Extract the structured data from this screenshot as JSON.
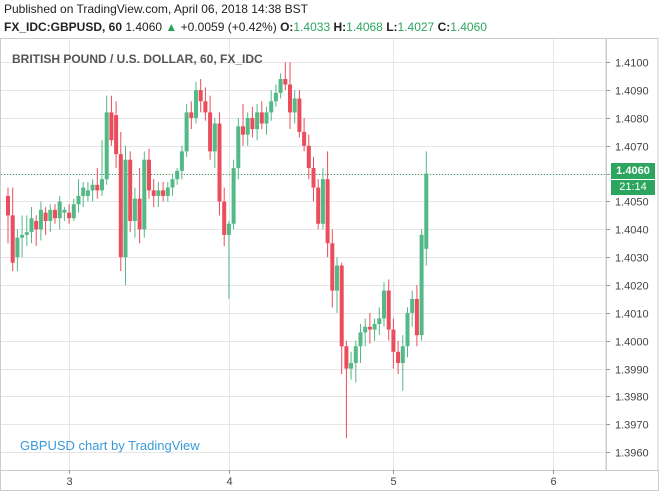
{
  "header": {
    "published": "Published on TradingView.com, April 06, 2018 14:38 BST",
    "symbol": "FX_IDC:GBPUSD, 60",
    "last": "1.4060",
    "change": "+0.0059 (+0.42%)",
    "open_label": "O:",
    "open": "1.4033",
    "high_label": "H:",
    "high": "1.4068",
    "low_label": "L:",
    "low": "1.4027",
    "close_label": "C:",
    "close": "1.4060"
  },
  "watermark": "GBPUSD chart by TradingView",
  "price_tag": "1.4060",
  "time_tag": "21:14",
  "colors": {
    "up": "#53b987",
    "down": "#eb4d5c",
    "grid": "#e6e6e6",
    "last_line": "#2ca55f",
    "watermark": "#3a9ad9"
  },
  "chart_data": {
    "type": "candlestick",
    "title": "BRITISH POUND / U.S. DOLLAR, 60, FX_IDC",
    "ylim": [
      1.3955,
      1.4108
    ],
    "y_ticks": [
      "1.3960",
      "1.3970",
      "1.3980",
      "1.3990",
      "1.4000",
      "1.4010",
      "1.4020",
      "1.4030",
      "1.4040",
      "1.4050",
      "1.4060",
      "1.4070",
      "1.4080",
      "1.4090",
      "1.4100"
    ],
    "x_ticks": [
      {
        "label": "3",
        "index": 13
      },
      {
        "label": "4",
        "index": 47
      },
      {
        "label": "5",
        "index": 82
      },
      {
        "label": "6",
        "index": 116
      }
    ],
    "last_price": 1.406,
    "candles": [
      {
        "o": 1.4052,
        "h": 1.4055,
        "l": 1.4035,
        "c": 1.4045
      },
      {
        "o": 1.4045,
        "h": 1.4055,
        "l": 1.4025,
        "c": 1.4028
      },
      {
        "o": 1.403,
        "h": 1.404,
        "l": 1.4025,
        "c": 1.4037
      },
      {
        "o": 1.4037,
        "h": 1.4045,
        "l": 1.403,
        "c": 1.4038
      },
      {
        "o": 1.4038,
        "h": 1.4045,
        "l": 1.4034,
        "c": 1.4039
      },
      {
        "o": 1.4039,
        "h": 1.4048,
        "l": 1.4035,
        "c": 1.4044
      },
      {
        "o": 1.4043,
        "h": 1.4045,
        "l": 1.4034,
        "c": 1.404
      },
      {
        "o": 1.404,
        "h": 1.405,
        "l": 1.4036,
        "c": 1.4047
      },
      {
        "o": 1.4046,
        "h": 1.4048,
        "l": 1.4038,
        "c": 1.4043
      },
      {
        "o": 1.4043,
        "h": 1.4049,
        "l": 1.4039,
        "c": 1.4047
      },
      {
        "o": 1.4047,
        "h": 1.4049,
        "l": 1.4042,
        "c": 1.4044
      },
      {
        "o": 1.4044,
        "h": 1.4052,
        "l": 1.404,
        "c": 1.405
      },
      {
        "o": 1.4046,
        "h": 1.4048,
        "l": 1.4043,
        "c": 1.4047
      },
      {
        "o": 1.4046,
        "h": 1.4049,
        "l": 1.4042,
        "c": 1.4044
      },
      {
        "o": 1.4044,
        "h": 1.4051,
        "l": 1.4043,
        "c": 1.4049
      },
      {
        "o": 1.4049,
        "h": 1.4058,
        "l": 1.4046,
        "c": 1.4052
      },
      {
        "o": 1.4052,
        "h": 1.4057,
        "l": 1.4048,
        "c": 1.4055
      },
      {
        "o": 1.4052,
        "h": 1.4057,
        "l": 1.405,
        "c": 1.4054
      },
      {
        "o": 1.4054,
        "h": 1.4058,
        "l": 1.405,
        "c": 1.4056
      },
      {
        "o": 1.4056,
        "h": 1.4062,
        "l": 1.4051,
        "c": 1.4054
      },
      {
        "o": 1.4054,
        "h": 1.4072,
        "l": 1.4052,
        "c": 1.4058
      },
      {
        "o": 1.4058,
        "h": 1.4088,
        "l": 1.4056,
        "c": 1.4082
      },
      {
        "o": 1.4082,
        "h": 1.4088,
        "l": 1.407,
        "c": 1.4072
      },
      {
        "o": 1.4081,
        "h": 1.4086,
        "l": 1.4062,
        "c": 1.4067
      },
      {
        "o": 1.4067,
        "h": 1.4075,
        "l": 1.4025,
        "c": 1.403
      },
      {
        "o": 1.403,
        "h": 1.407,
        "l": 1.402,
        "c": 1.4065
      },
      {
        "o": 1.4065,
        "h": 1.4068,
        "l": 1.4039,
        "c": 1.4043
      },
      {
        "o": 1.4043,
        "h": 1.4055,
        "l": 1.4037,
        "c": 1.4051
      },
      {
        "o": 1.4051,
        "h": 1.4062,
        "l": 1.4035,
        "c": 1.404
      },
      {
        "o": 1.404,
        "h": 1.4068,
        "l": 1.4037,
        "c": 1.4065
      },
      {
        "o": 1.4065,
        "h": 1.4069,
        "l": 1.4051,
        "c": 1.4054
      },
      {
        "o": 1.4054,
        "h": 1.4058,
        "l": 1.4048,
        "c": 1.4052
      },
      {
        "o": 1.4052,
        "h": 1.4057,
        "l": 1.4048,
        "c": 1.4054
      },
      {
        "o": 1.4054,
        "h": 1.4057,
        "l": 1.405,
        "c": 1.4052
      },
      {
        "o": 1.4052,
        "h": 1.4057,
        "l": 1.405,
        "c": 1.4055
      },
      {
        "o": 1.4055,
        "h": 1.406,
        "l": 1.4052,
        "c": 1.4058
      },
      {
        "o": 1.4058,
        "h": 1.4062,
        "l": 1.4056,
        "c": 1.4061
      },
      {
        "o": 1.4061,
        "h": 1.407,
        "l": 1.4058,
        "c": 1.4068
      },
      {
        "o": 1.4068,
        "h": 1.4085,
        "l": 1.4066,
        "c": 1.4082
      },
      {
        "o": 1.4082,
        "h": 1.4086,
        "l": 1.4076,
        "c": 1.408
      },
      {
        "o": 1.408,
        "h": 1.4093,
        "l": 1.4078,
        "c": 1.409
      },
      {
        "o": 1.409,
        "h": 1.4094,
        "l": 1.4082,
        "c": 1.4086
      },
      {
        "o": 1.4086,
        "h": 1.4091,
        "l": 1.4079,
        "c": 1.4082
      },
      {
        "o": 1.4082,
        "h": 1.4088,
        "l": 1.4065,
        "c": 1.4068
      },
      {
        "o": 1.4068,
        "h": 1.408,
        "l": 1.4062,
        "c": 1.4078
      },
      {
        "o": 1.4078,
        "h": 1.4082,
        "l": 1.4045,
        "c": 1.405
      },
      {
        "o": 1.405,
        "h": 1.4055,
        "l": 1.4034,
        "c": 1.4038
      },
      {
        "o": 1.4038,
        "h": 1.4043,
        "l": 1.4015,
        "c": 1.4042
      },
      {
        "o": 1.4042,
        "h": 1.4065,
        "l": 1.404,
        "c": 1.4062
      },
      {
        "o": 1.4062,
        "h": 1.408,
        "l": 1.4058,
        "c": 1.4077
      },
      {
        "o": 1.4077,
        "h": 1.4085,
        "l": 1.407,
        "c": 1.4074
      },
      {
        "o": 1.4074,
        "h": 1.4082,
        "l": 1.407,
        "c": 1.408
      },
      {
        "o": 1.408,
        "h": 1.4084,
        "l": 1.4073,
        "c": 1.4076
      },
      {
        "o": 1.4076,
        "h": 1.4085,
        "l": 1.4072,
        "c": 1.4082
      },
      {
        "o": 1.4082,
        "h": 1.4086,
        "l": 1.4076,
        "c": 1.4078
      },
      {
        "o": 1.4078,
        "h": 1.4084,
        "l": 1.4074,
        "c": 1.4082
      },
      {
        "o": 1.4082,
        "h": 1.409,
        "l": 1.4079,
        "c": 1.4086
      },
      {
        "o": 1.4086,
        "h": 1.4092,
        "l": 1.4084,
        "c": 1.4089
      },
      {
        "o": 1.4089,
        "h": 1.4096,
        "l": 1.4087,
        "c": 1.4094
      },
      {
        "o": 1.4094,
        "h": 1.41,
        "l": 1.409,
        "c": 1.4092
      },
      {
        "o": 1.4092,
        "h": 1.41,
        "l": 1.4076,
        "c": 1.4082
      },
      {
        "o": 1.4082,
        "h": 1.409,
        "l": 1.4078,
        "c": 1.4087
      },
      {
        "o": 1.4087,
        "h": 1.409,
        "l": 1.4073,
        "c": 1.4075
      },
      {
        "o": 1.4075,
        "h": 1.408,
        "l": 1.4068,
        "c": 1.407
      },
      {
        "o": 1.407,
        "h": 1.4074,
        "l": 1.4058,
        "c": 1.4062
      },
      {
        "o": 1.4062,
        "h": 1.4066,
        "l": 1.405,
        "c": 1.4055
      },
      {
        "o": 1.4055,
        "h": 1.4058,
        "l": 1.404,
        "c": 1.4042
      },
      {
        "o": 1.4042,
        "h": 1.4062,
        "l": 1.404,
        "c": 1.4058
      },
      {
        "o": 1.4058,
        "h": 1.4068,
        "l": 1.403,
        "c": 1.4035
      },
      {
        "o": 1.4035,
        "h": 1.404,
        "l": 1.4012,
        "c": 1.4018
      },
      {
        "o": 1.4018,
        "h": 1.403,
        "l": 1.401,
        "c": 1.4027
      },
      {
        "o": 1.4027,
        "h": 1.4028,
        "l": 1.3988,
        "c": 1.3998
      },
      {
        "o": 1.3998,
        "h": 1.4,
        "l": 1.3965,
        "c": 1.399
      },
      {
        "o": 1.399,
        "h": 1.3996,
        "l": 1.3986,
        "c": 1.3992
      },
      {
        "o": 1.3992,
        "h": 1.4,
        "l": 1.3985,
        "c": 1.3998
      },
      {
        "o": 1.3998,
        "h": 1.4006,
        "l": 1.3992,
        "c": 1.4003
      },
      {
        "o": 1.4003,
        "h": 1.4008,
        "l": 1.3998,
        "c": 1.4005
      },
      {
        "o": 1.4005,
        "h": 1.401,
        "l": 1.3999,
        "c": 1.4004
      },
      {
        "o": 1.4004,
        "h": 1.4008,
        "l": 1.4,
        "c": 1.4006
      },
      {
        "o": 1.4006,
        "h": 1.4012,
        "l": 1.4002,
        "c": 1.4008
      },
      {
        "o": 1.4008,
        "h": 1.4021,
        "l": 1.4005,
        "c": 1.4018
      },
      {
        "o": 1.4018,
        "h": 1.4022,
        "l": 1.4,
        "c": 1.4004
      },
      {
        "o": 1.4004,
        "h": 1.4008,
        "l": 1.399,
        "c": 1.3996
      },
      {
        "o": 1.3996,
        "h": 1.4,
        "l": 1.3988,
        "c": 1.3992
      },
      {
        "o": 1.3992,
        "h": 1.4002,
        "l": 1.3982,
        "c": 1.3998
      },
      {
        "o": 1.3998,
        "h": 1.4012,
        "l": 1.3994,
        "c": 1.401
      },
      {
        "o": 1.401,
        "h": 1.4018,
        "l": 1.4005,
        "c": 1.4015
      },
      {
        "o": 1.4015,
        "h": 1.402,
        "l": 1.3998,
        "c": 1.4002
      },
      {
        "o": 1.4002,
        "h": 1.404,
        "l": 1.4,
        "c": 1.4038
      },
      {
        "o": 1.4033,
        "h": 1.4068,
        "l": 1.4027,
        "c": 1.406
      }
    ]
  }
}
